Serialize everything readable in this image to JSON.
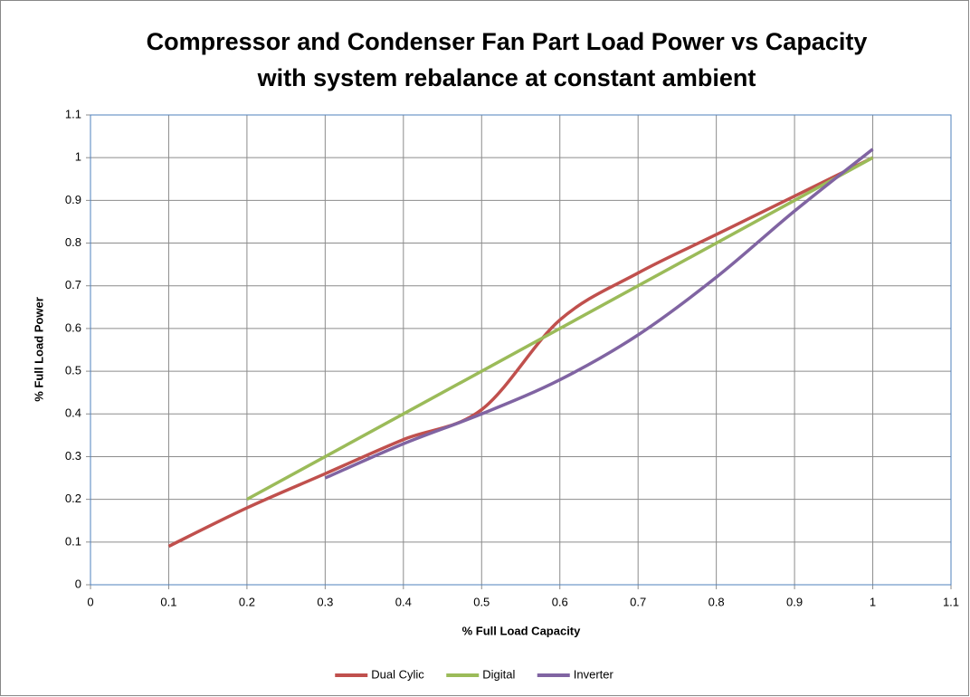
{
  "chart_data": {
    "type": "line",
    "title": [
      "Compressor and Condenser Fan Part Load Power vs Capacity",
      "with system rebalance at constant ambient"
    ],
    "x_label": "% Full Load Capacity",
    "y_label": "% Full Load Power",
    "xlim": [
      0,
      1.1
    ],
    "ylim": [
      0,
      1.1
    ],
    "xticks": [
      0,
      0.1,
      0.2,
      0.3,
      0.4,
      0.5,
      0.6,
      0.7,
      0.8,
      0.9,
      1,
      1.1
    ],
    "yticks": [
      0,
      0.1,
      0.2,
      0.3,
      0.4,
      0.5,
      0.6,
      0.7,
      0.8,
      0.9,
      1,
      1.1
    ],
    "grid": true,
    "smooth": true,
    "legend": "bottom",
    "series": [
      {
        "name": "Dual Cylic",
        "color": "#c0504d",
        "x": [
          0.1,
          0.2,
          0.3,
          0.4,
          0.5,
          0.6,
          0.7,
          0.8,
          0.9,
          1
        ],
        "values": [
          0.09,
          0.18,
          0.26,
          0.34,
          0.41,
          0.62,
          0.73,
          0.82,
          0.91,
          1
        ]
      },
      {
        "name": "Digital",
        "color": "#9bbb59",
        "x": [
          0.2,
          1
        ],
        "values": [
          0.2,
          1
        ]
      },
      {
        "name": "Inverter",
        "color": "#8064a2",
        "x": [
          0.3,
          0.4,
          0.5,
          0.6,
          0.7,
          0.8,
          0.9,
          1
        ],
        "values": [
          0.25,
          0.33,
          0.4,
          0.48,
          0.585,
          0.72,
          0.875,
          1.02
        ]
      }
    ]
  }
}
